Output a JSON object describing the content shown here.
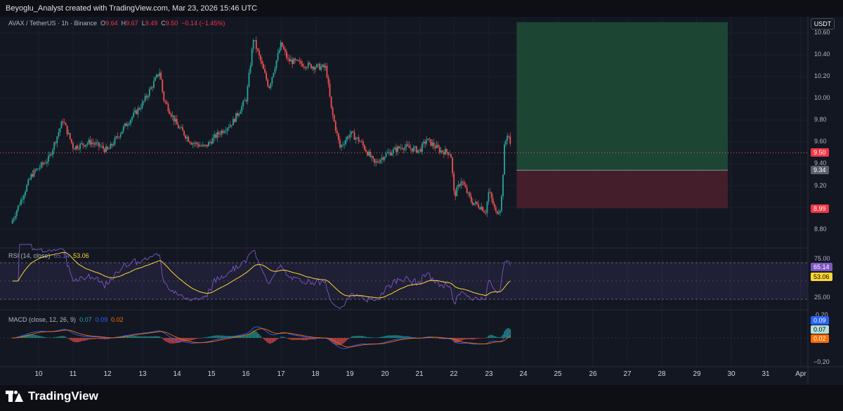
{
  "header": {
    "credit": "Beyoglu_Analyst created with TradingView.com, Mar 23, 2026 15:46 UTC"
  },
  "legend": {
    "symbol": "AVAX / TetherUS · 1h · Binance",
    "o_label": "O",
    "o_value": "9.64",
    "h_label": "H",
    "h_value": "9.67",
    "l_label": "L",
    "l_value": "9.49",
    "c_label": "C",
    "c_value": "9.50",
    "change": "−0.14 (−1.45%)"
  },
  "currency_label": "USDT",
  "price_axis": {
    "ticks": [
      "10.60",
      "10.40",
      "10.20",
      "10.00",
      "9.80",
      "9.60",
      "9.40",
      "9.20",
      "8.80"
    ]
  },
  "price_badges": {
    "last": "9.50",
    "target_low": "9.34",
    "stop": "8.99"
  },
  "rsi": {
    "legend_name": "RSI (14, close)",
    "rsi_value": "65.14",
    "ma_value": "53.06",
    "ticks": [
      "75.00",
      "25.00"
    ],
    "badge_rsi": "65.14",
    "badge_ma": "53.06"
  },
  "macd": {
    "legend_name": "MACD (close, 12, 26, 9)",
    "v1": "0.07",
    "v2": "0.09",
    "v3": "0.02",
    "ticks": [
      "0.20",
      "−0.20"
    ],
    "badge_a": "0.09",
    "badge_b": "0.07",
    "badge_c": "0.02"
  },
  "x_axis": {
    "labels": [
      "10",
      "11",
      "12",
      "13",
      "14",
      "15",
      "16",
      "17",
      "18",
      "19",
      "20",
      "21",
      "22",
      "23",
      "24",
      "25",
      "26",
      "27",
      "28",
      "29",
      "30",
      "31",
      "Apr"
    ]
  },
  "branding": {
    "name": "TradingView"
  },
  "colors": {
    "up": "#26a69a",
    "down": "#ef5350",
    "rsi_line": "#7e57c2",
    "rsi_ma": "#fdd835",
    "macd_line": "#2962ff",
    "signal_line": "#ff6d00",
    "profit_zone": "#1e4a36",
    "loss_zone": "#4a1f2c"
  },
  "chart_data": {
    "type": "candlestick",
    "symbol": "AVAX / TetherUS",
    "interval": "1h",
    "x_range": [
      "Mar 9",
      "Apr 1"
    ],
    "y_range": [
      8.7,
      10.7
    ],
    "path_points": [
      {
        "t": 9.2,
        "p": 8.85
      },
      {
        "t": 9.8,
        "p": 9.3
      },
      {
        "t": 10.3,
        "p": 9.45
      },
      {
        "t": 10.7,
        "p": 9.8
      },
      {
        "t": 11.0,
        "p": 9.55
      },
      {
        "t": 11.5,
        "p": 9.6
      },
      {
        "t": 12.0,
        "p": 9.52
      },
      {
        "t": 12.5,
        "p": 9.75
      },
      {
        "t": 13.0,
        "p": 9.95
      },
      {
        "t": 13.5,
        "p": 10.25
      },
      {
        "t": 13.6,
        "p": 10.0
      },
      {
        "t": 14.0,
        "p": 9.75
      },
      {
        "t": 14.4,
        "p": 9.6
      },
      {
        "t": 14.8,
        "p": 9.55
      },
      {
        "t": 15.1,
        "p": 9.65
      },
      {
        "t": 15.6,
        "p": 9.78
      },
      {
        "t": 16.0,
        "p": 10.0
      },
      {
        "t": 16.2,
        "p": 10.55
      },
      {
        "t": 16.5,
        "p": 10.25
      },
      {
        "t": 16.65,
        "p": 10.1
      },
      {
        "t": 17.0,
        "p": 10.5
      },
      {
        "t": 17.2,
        "p": 10.35
      },
      {
        "t": 17.8,
        "p": 10.3
      },
      {
        "t": 18.3,
        "p": 10.28
      },
      {
        "t": 18.45,
        "p": 9.9
      },
      {
        "t": 18.7,
        "p": 9.55
      },
      {
        "t": 19.0,
        "p": 9.68
      },
      {
        "t": 19.3,
        "p": 9.6
      },
      {
        "t": 19.7,
        "p": 9.4
      },
      {
        "t": 20.0,
        "p": 9.48
      },
      {
        "t": 20.5,
        "p": 9.56
      },
      {
        "t": 21.0,
        "p": 9.52
      },
      {
        "t": 21.2,
        "p": 9.62
      },
      {
        "t": 21.6,
        "p": 9.52
      },
      {
        "t": 21.9,
        "p": 9.5
      },
      {
        "t": 22.0,
        "p": 9.1
      },
      {
        "t": 22.2,
        "p": 9.25
      },
      {
        "t": 22.5,
        "p": 9.05
      },
      {
        "t": 22.8,
        "p": 9.0
      },
      {
        "t": 22.9,
        "p": 8.95
      },
      {
        "t": 23.0,
        "p": 9.15
      },
      {
        "t": 23.2,
        "p": 8.95
      },
      {
        "t": 23.35,
        "p": 9.0
      },
      {
        "t": 23.45,
        "p": 9.55
      },
      {
        "t": 23.55,
        "p": 9.7
      },
      {
        "t": 23.65,
        "p": 9.5
      }
    ],
    "last_price": 9.5,
    "position": {
      "entry": 9.34,
      "stop": 8.99,
      "target_top": 10.7,
      "start_day": 23.8,
      "end_day": 29.9
    },
    "rsi": {
      "period": 14,
      "value": 65.14,
      "ma": 53.06,
      "upper": 75,
      "lower": 25
    },
    "macd": {
      "fast": 12,
      "slow": 26,
      "signal": 9,
      "histogram": 0.07,
      "macd": 0.09,
      "signal_value": 0.02
    }
  }
}
